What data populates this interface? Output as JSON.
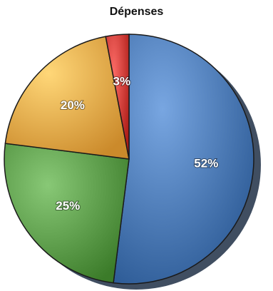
{
  "chart_data": {
    "type": "pie",
    "title": "Dépenses",
    "slices": [
      {
        "label": "52%",
        "value": 52,
        "color": "#4a78b3"
      },
      {
        "label": "25%",
        "value": 25,
        "color": "#5a9a48"
      },
      {
        "label": "20%",
        "value": 20,
        "color": "#eaa94a"
      },
      {
        "label": "3%",
        "value": 3,
        "color": "#cc3b36"
      }
    ],
    "start": "top",
    "direction": "clockwise",
    "legend": "none"
  }
}
